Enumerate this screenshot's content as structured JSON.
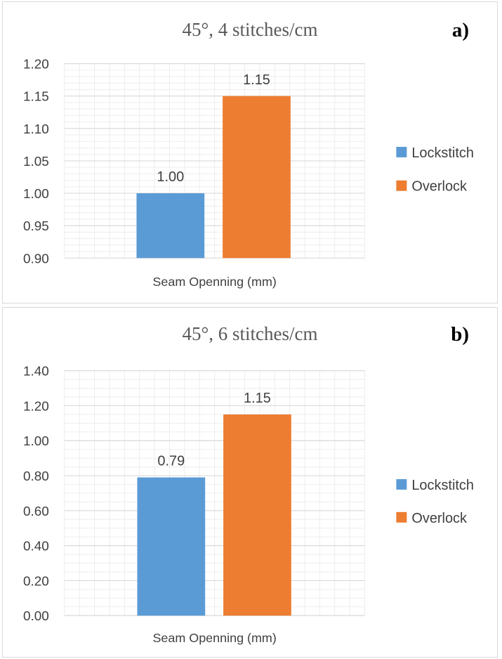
{
  "chart_data": [
    {
      "id": "a",
      "type": "bar",
      "title": "45°, 4 stitches/cm",
      "panel_tag": "a)",
      "categories": [
        "Seam Openning (mm)"
      ],
      "xlabel": "Seam Openning (mm)",
      "ylim": [
        0.9,
        1.2
      ],
      "yticks": [
        0.9,
        0.95,
        1.0,
        1.05,
        1.1,
        1.15,
        1.2
      ],
      "ytick_labels": [
        "0.90",
        "0.95",
        "1.00",
        "1.05",
        "1.10",
        "1.15",
        "1.20"
      ],
      "minor_grid_step": 0.01,
      "grid": true,
      "legend_position": "right",
      "series": [
        {
          "name": "Lockstitch",
          "values": [
            1.0
          ],
          "data_labels": [
            "1.00"
          ],
          "color": "#5b9bd5"
        },
        {
          "name": "Overlock",
          "values": [
            1.15
          ],
          "data_labels": [
            "1.15"
          ],
          "color": "#ed7d31"
        }
      ]
    },
    {
      "id": "b",
      "type": "bar",
      "title": "45°, 6 stitches/cm",
      "panel_tag": "b)",
      "categories": [
        "Seam Openning (mm)"
      ],
      "xlabel": "Seam Openning (mm)",
      "ylim": [
        0.0,
        1.4
      ],
      "yticks": [
        0.0,
        0.2,
        0.4,
        0.6,
        0.8,
        1.0,
        1.2,
        1.4
      ],
      "ytick_labels": [
        "0.00",
        "0.20",
        "0.40",
        "0.60",
        "0.80",
        "1.00",
        "1.20",
        "1.40"
      ],
      "minor_grid_step": 0.05,
      "grid": true,
      "legend_position": "right",
      "series": [
        {
          "name": "Lockstitch",
          "values": [
            0.79
          ],
          "data_labels": [
            "0.79"
          ],
          "color": "#5b9bd5"
        },
        {
          "name": "Overlock",
          "values": [
            1.15
          ],
          "data_labels": [
            "1.15"
          ],
          "color": "#ed7d31"
        }
      ]
    }
  ],
  "colors": {
    "major_grid": "#d9d9d9",
    "minor_grid": "#ededed",
    "text": "#404040",
    "panel_border": "#d9d9d9"
  }
}
